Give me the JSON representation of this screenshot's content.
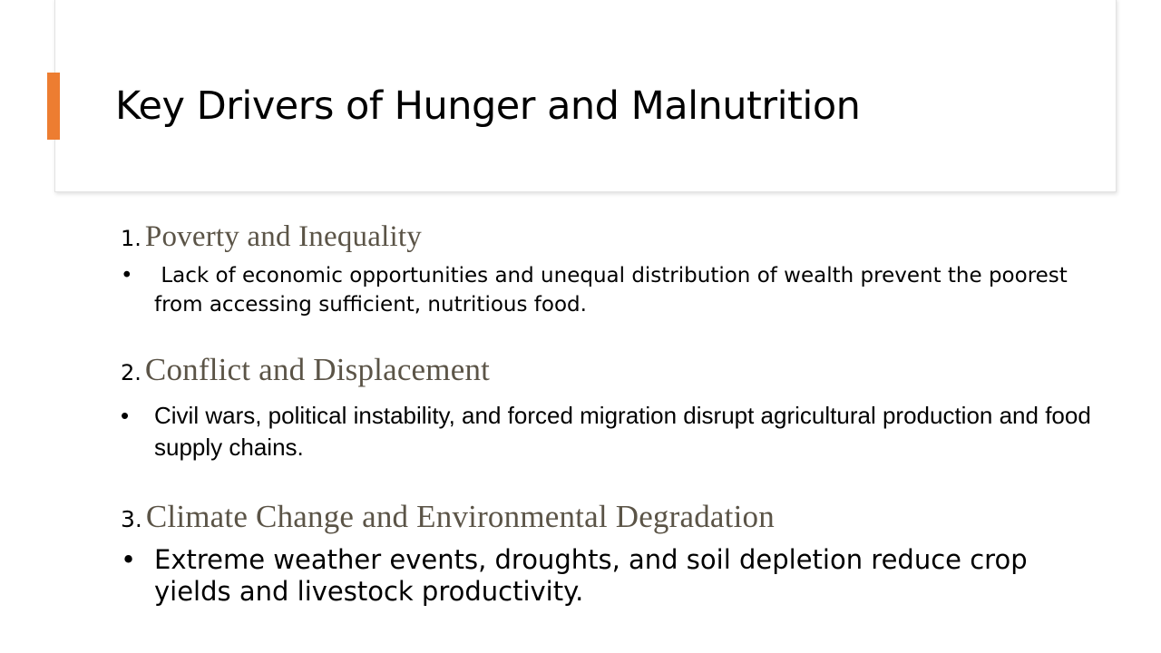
{
  "slide": {
    "title": "Key Drivers of Hunger and Malnutrition",
    "colors": {
      "accent": "#ED7D31",
      "heading": "#5B5447",
      "title": "#000000",
      "body": "#000000"
    }
  },
  "sections": [
    {
      "number": "1.",
      "heading": "Poverty and Inequality",
      "bullet_symbol": "•",
      "text": " Lack of economic opportunities and unequal distribution of wealth prevent the poorest from accessing sufficient, nutritious food."
    },
    {
      "number": "2.",
      "heading": "Conflict and Displacement",
      "bullet_symbol": "•",
      "text": "Civil wars, political instability, and forced migration disrupt agricultural production and food supply chains."
    },
    {
      "number": "3.",
      "heading": "Climate Change and Environmental Degradation",
      "bullet_symbol": "•",
      "text": "Extreme weather events, droughts, and soil depletion reduce crop yields and livestock productivity."
    }
  ]
}
